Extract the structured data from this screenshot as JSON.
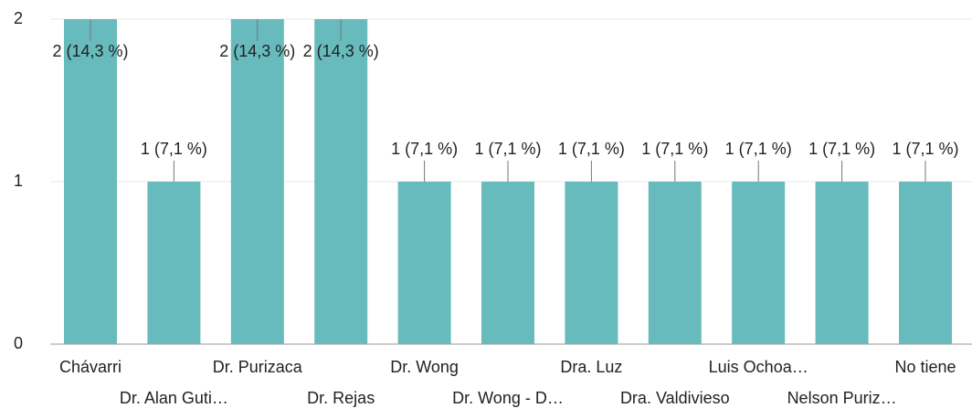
{
  "chart_data": {
    "type": "bar",
    "categories": [
      "Chávarri",
      "Dr. Alan Guti…",
      "Dr. Purizaca",
      "Dr. Rejas",
      "Dr. Wong",
      "Dr. Wong - D…",
      "Dra. Luz",
      "Dra. Valdivieso",
      "Luis Ochoa…",
      "Nelson Puriz…",
      "No tiene"
    ],
    "values": [
      2,
      1,
      2,
      2,
      1,
      1,
      1,
      1,
      1,
      1,
      1
    ],
    "value_labels": [
      "2 (14,3 %)",
      "1 (7,1 %)",
      "2 (14,3 %)",
      "2 (14,3 %)",
      "1 (7,1 %)",
      "1 (7,1 %)",
      "1 (7,1 %)",
      "1 (7,1 %)",
      "1 (7,1 %)",
      "1 (7,1 %)",
      "1 (7,1 %)"
    ],
    "color": "#67bbbc",
    "ylim": [
      0,
      2
    ],
    "yticks": [
      0,
      1,
      2
    ],
    "grid": true
  }
}
